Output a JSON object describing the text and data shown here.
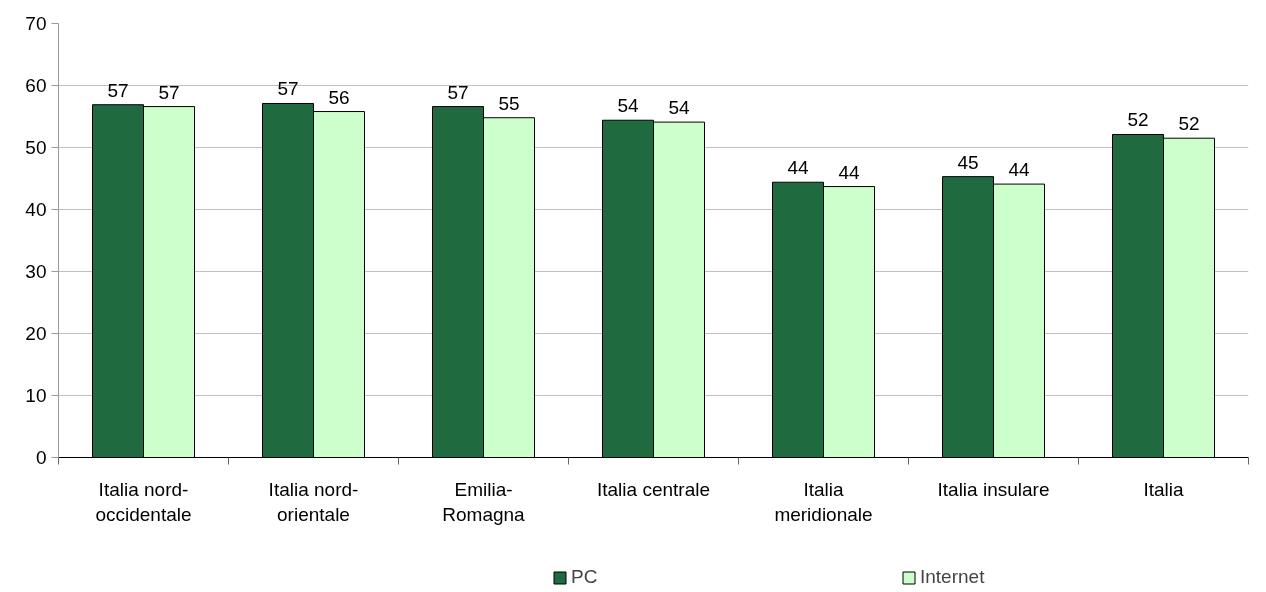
{
  "chart_data": {
    "type": "bar",
    "categories": [
      "Italia nord-occidentale",
      "Italia nord-orientale",
      "Emilia-Romagna",
      "Italia centrale",
      "Italia meridionale",
      "Italia insulare",
      "Italia"
    ],
    "series": [
      {
        "name": "PC",
        "color": "#1f6b3f",
        "values": [
          56.9,
          57.1,
          56.6,
          54.4,
          44.4,
          45.3,
          52.1
        ],
        "value_labels": [
          "57",
          "57",
          "57",
          "54",
          "44",
          "45",
          "52"
        ]
      },
      {
        "name": "Internet",
        "color": "#ccffcc",
        "values": [
          56.6,
          55.8,
          54.8,
          54.1,
          43.7,
          44.1,
          51.5
        ],
        "value_labels": [
          "57",
          "56",
          "55",
          "54",
          "44",
          "44",
          "52"
        ]
      }
    ],
    "ylim": [
      0,
      70
    ],
    "yticks": [
      0,
      10,
      20,
      30,
      40,
      50,
      60,
      70
    ],
    "grid": "y",
    "legend": "bottom"
  }
}
